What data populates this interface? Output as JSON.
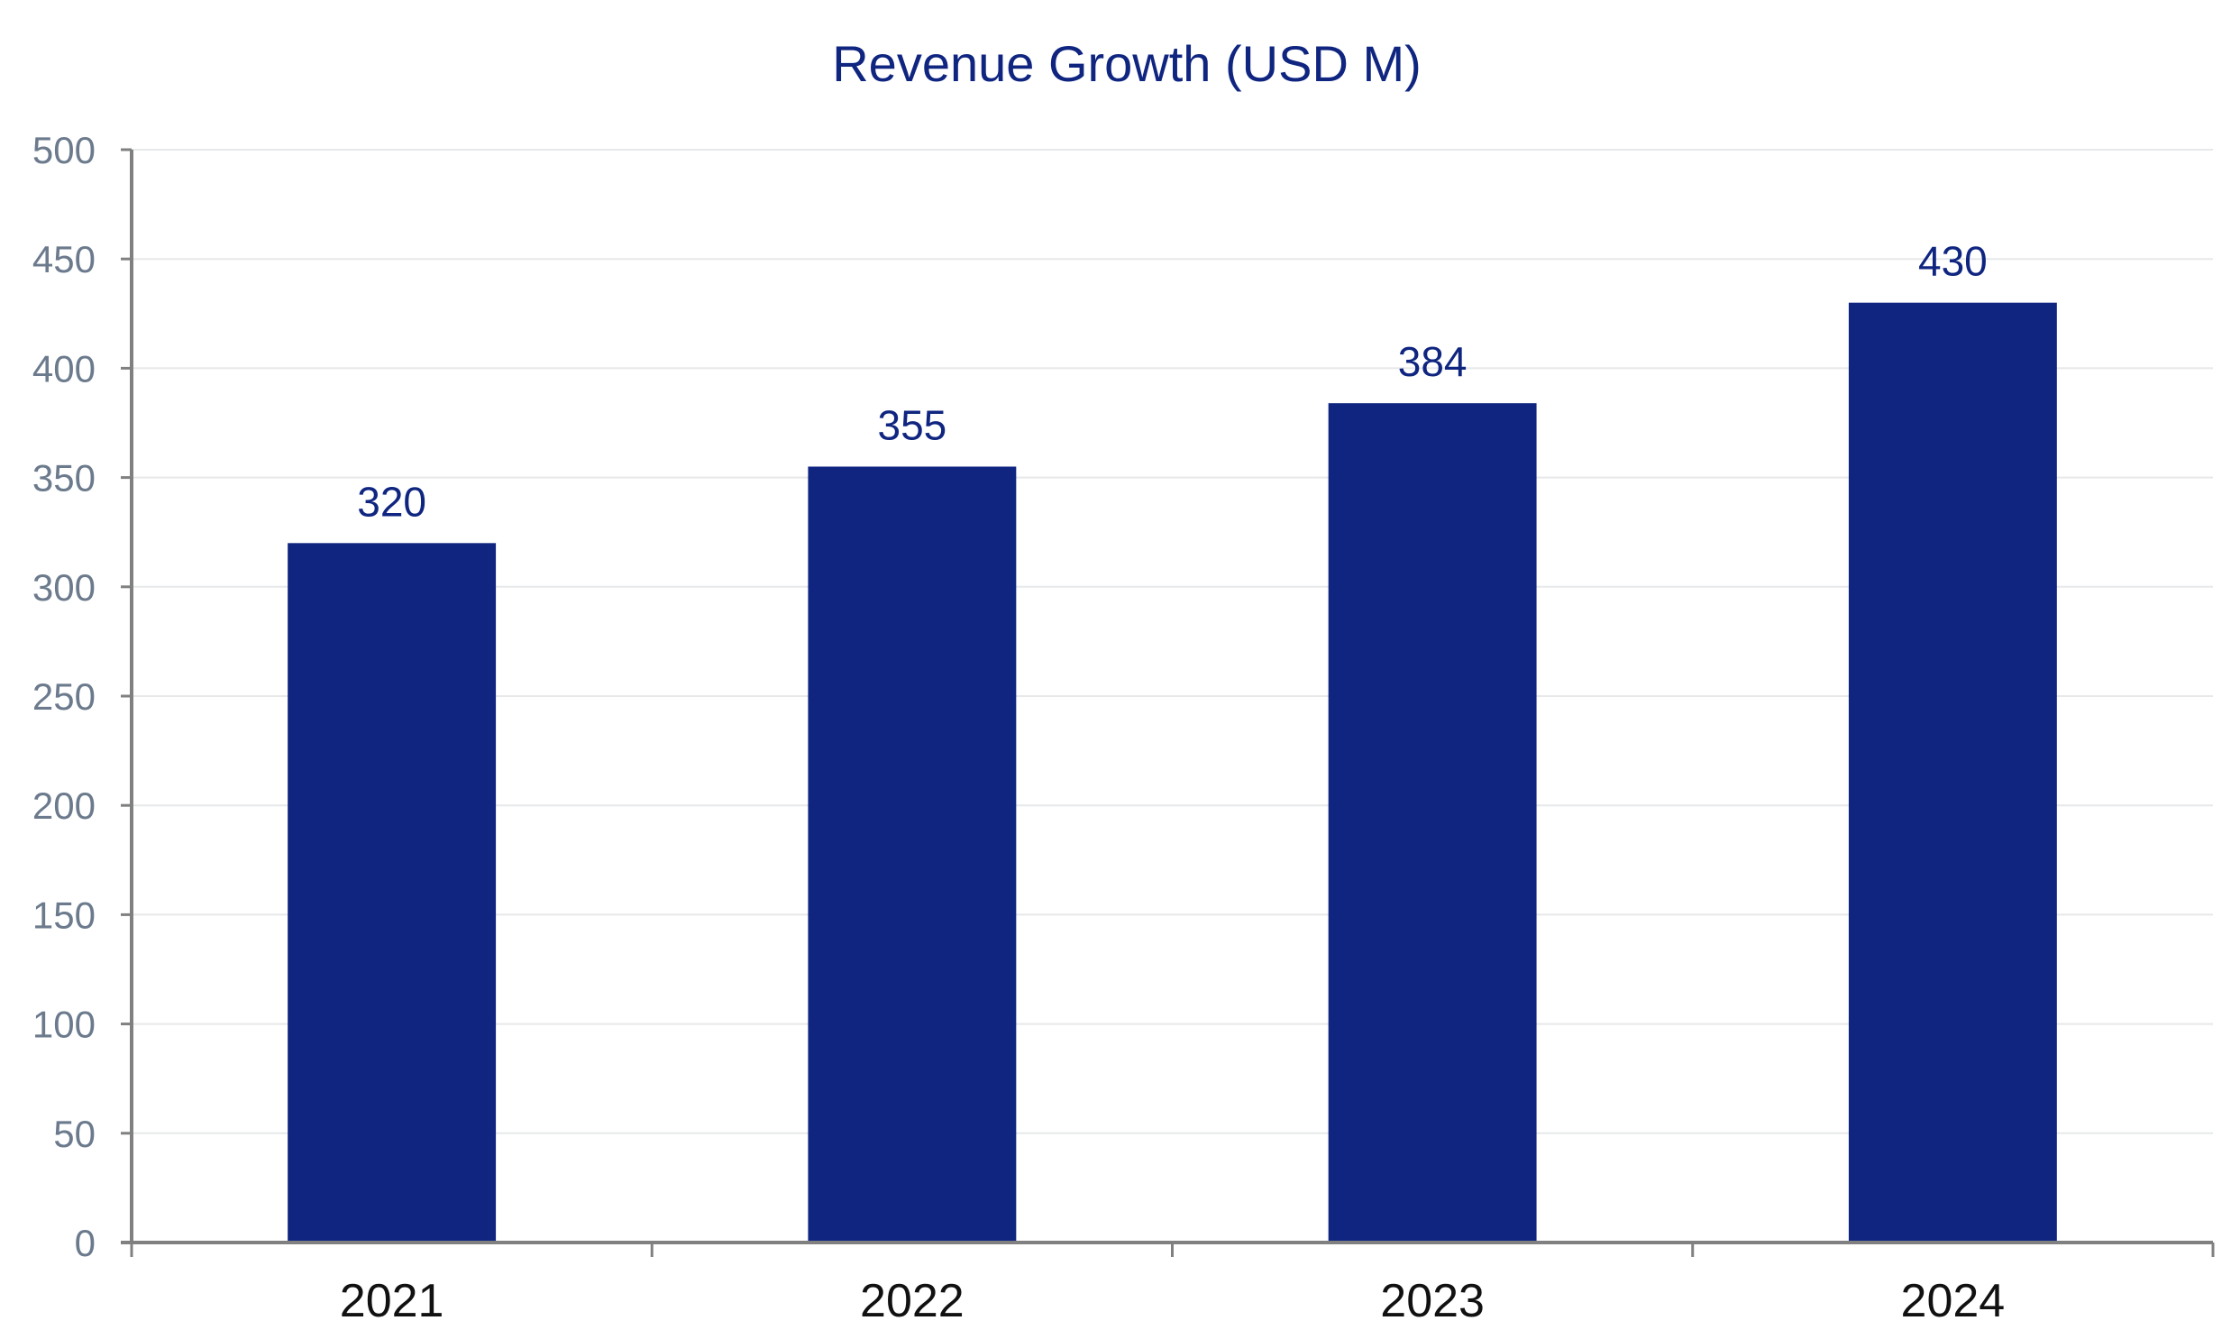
{
  "colors": {
    "bar": "#0f2580",
    "title": "#0f2580",
    "data_label": "#0f2580",
    "y_tick_label": "#6b7a8c",
    "x_tick_label": "#111111",
    "axis": "#808080",
    "grid": "#e6e8ea"
  },
  "chart_data": {
    "type": "bar",
    "title": "Revenue Growth (USD M)",
    "xlabel": "",
    "ylabel": "",
    "categories": [
      "2021",
      "2022",
      "2023",
      "2024"
    ],
    "values": [
      320,
      355,
      384,
      430
    ],
    "data_labels": [
      "320",
      "355",
      "384",
      "430"
    ],
    "ylim": [
      0,
      500
    ],
    "yticks": [
      0,
      50,
      100,
      150,
      200,
      250,
      300,
      350,
      400,
      450,
      500
    ],
    "ytick_labels": [
      "0",
      "50",
      "100",
      "150",
      "200",
      "250",
      "300",
      "350",
      "400",
      "450",
      "500"
    ],
    "grid": true,
    "legend": "none"
  }
}
